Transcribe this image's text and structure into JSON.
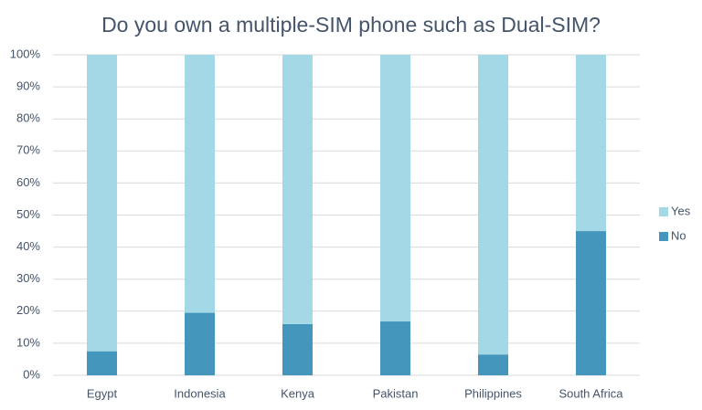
{
  "chart_data": {
    "type": "stacked_bar",
    "title": "Do you own a multiple-SIM phone such as Dual-SIM?",
    "categories": [
      "Egypt",
      "Indonesia",
      "Kenya",
      "Pakistan",
      "Philippines",
      "South Africa"
    ],
    "series": [
      {
        "name": "No",
        "color": "#4596bc",
        "values": [
          7.5,
          19.5,
          16,
          16.8,
          6.5,
          45
        ]
      },
      {
        "name": "Yes",
        "color": "#a3d9e7",
        "values": [
          92.5,
          80.5,
          84,
          83.2,
          93.5,
          55
        ]
      }
    ],
    "ylim": [
      0,
      100
    ],
    "yticks": [
      {
        "value": 0,
        "label": "0%"
      },
      {
        "value": 10,
        "label": "10%"
      },
      {
        "value": 20,
        "label": "20%"
      },
      {
        "value": 30,
        "label": "30%"
      },
      {
        "value": 40,
        "label": "40%"
      },
      {
        "value": 50,
        "label": "50%"
      },
      {
        "value": 60,
        "label": "60%"
      },
      {
        "value": 70,
        "label": "70%"
      },
      {
        "value": 80,
        "label": "80%"
      },
      {
        "value": 90,
        "label": "90%"
      },
      {
        "value": 100,
        "label": "100%"
      }
    ],
    "grid": true,
    "legend": "right"
  }
}
